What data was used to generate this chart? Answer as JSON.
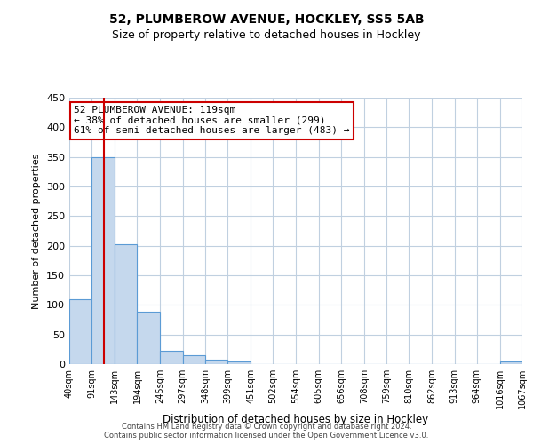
{
  "title": "52, PLUMBEROW AVENUE, HOCKLEY, SS5 5AB",
  "subtitle": "Size of property relative to detached houses in Hockley",
  "xlabel": "Distribution of detached houses by size in Hockley",
  "ylabel": "Number of detached properties",
  "bin_edges": [
    40,
    91,
    143,
    194,
    245,
    297,
    348,
    399,
    451,
    502,
    554,
    605,
    656,
    708,
    759,
    810,
    862,
    913,
    964,
    1016,
    1067
  ],
  "bar_heights": [
    110,
    350,
    203,
    88,
    22,
    15,
    7,
    5,
    0,
    0,
    0,
    0,
    0,
    0,
    0,
    0,
    0,
    0,
    0,
    4
  ],
  "bar_color": "#c5d8ed",
  "bar_edge_color": "#5b9bd5",
  "red_line_x": 119,
  "red_line_color": "#cc0000",
  "ylim": [
    0,
    450
  ],
  "yticks": [
    0,
    50,
    100,
    150,
    200,
    250,
    300,
    350,
    400,
    450
  ],
  "annotation_title": "52 PLUMBEROW AVENUE: 119sqm",
  "annotation_line1": "← 38% of detached houses are smaller (299)",
  "annotation_line2": "61% of semi-detached houses are larger (483) →",
  "annotation_box_color": "#cc0000",
  "footer_line1": "Contains HM Land Registry data © Crown copyright and database right 2024.",
  "footer_line2": "Contains public sector information licensed under the Open Government Licence v3.0.",
  "background_color": "#ffffff",
  "grid_color": "#c0d0e0"
}
